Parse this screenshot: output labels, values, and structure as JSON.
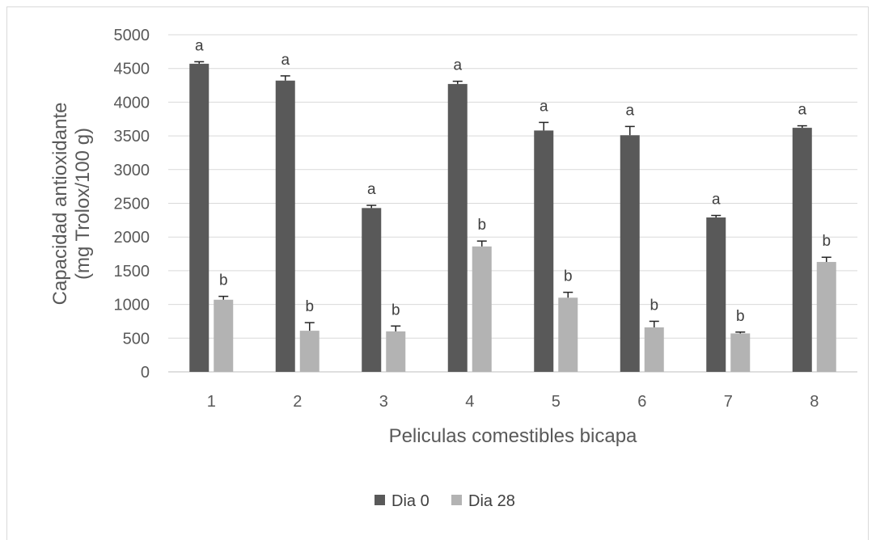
{
  "chart_data": {
    "type": "bar",
    "title": "",
    "xlabel": "Peliculas comestibles bicapa",
    "ylabel_lines": [
      "Capacidad antioxidante",
      "(mg Trolox/100 g)"
    ],
    "ylim": [
      0,
      5000
    ],
    "yticks": [
      0,
      500,
      1000,
      1500,
      2000,
      2500,
      3000,
      3500,
      4000,
      4500,
      5000
    ],
    "grid": true,
    "legend_position": "bottom",
    "categories": [
      "1",
      "2",
      "3",
      "4",
      "5",
      "6",
      "7",
      "8"
    ],
    "series": [
      {
        "name": "Dia 0",
        "color": "#595959",
        "values": [
          4570,
          4320,
          2430,
          4270,
          3580,
          3510,
          2290,
          3620
        ],
        "errors": [
          30,
          70,
          40,
          40,
          120,
          130,
          30,
          30
        ],
        "labels": [
          "a",
          "a",
          "a",
          "a",
          "a",
          "a",
          "a",
          "a"
        ]
      },
      {
        "name": "Dia 28",
        "color": "#b3b3b3",
        "values": [
          1070,
          610,
          600,
          1860,
          1100,
          660,
          570,
          1630
        ],
        "errors": [
          50,
          120,
          80,
          80,
          80,
          90,
          20,
          70
        ],
        "labels": [
          "b",
          "b",
          "b",
          "b",
          "b",
          "b",
          "b",
          "b"
        ]
      }
    ]
  }
}
